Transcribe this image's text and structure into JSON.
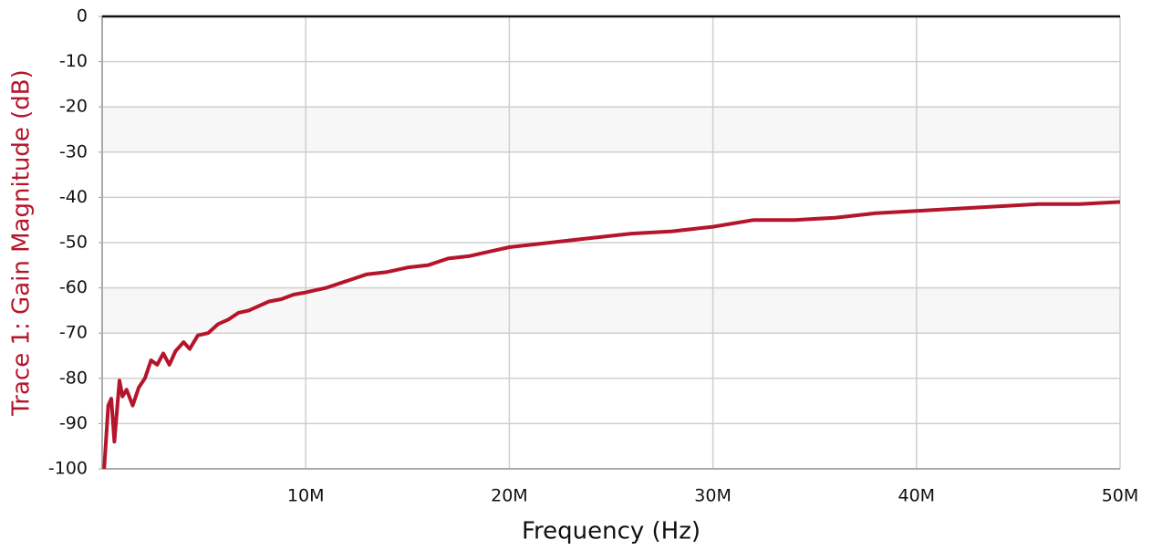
{
  "chart_data": {
    "type": "line",
    "xlabel": "Frequency (Hz)",
    "ylabel": "Trace 1: Gain Magnitude (dB)",
    "x": [
      100000,
      300000,
      450000,
      600000,
      750000,
      850000,
      1000000,
      1200000,
      1500000,
      1800000,
      2100000,
      2400000,
      2700000,
      3000000,
      3300000,
      3600000,
      4000000,
      4300000,
      4700000,
      5200000,
      5700000,
      6200000,
      6700000,
      7200000,
      7700000,
      8200000,
      8800000,
      9400000,
      10000000,
      11000000,
      12000000,
      13000000,
      14000000,
      15000000,
      16000000,
      17000000,
      18000000,
      19000000,
      20000000,
      22000000,
      24000000,
      26000000,
      28000000,
      30000000,
      32000000,
      34000000,
      36000000,
      38000000,
      40000000,
      42000000,
      44000000,
      46000000,
      48000000,
      50000000
    ],
    "series": [
      {
        "color": "#b5152b",
        "values": [
          -100,
          -86,
          -84.5,
          -94,
          -86,
          -80.5,
          -84,
          -82.5,
          -86,
          -82,
          -80,
          -76,
          -77,
          -74.5,
          -77,
          -74,
          -72,
          -73.5,
          -70.5,
          -70,
          -68,
          -67,
          -65.5,
          -65,
          -64,
          -63,
          -62.5,
          -61.5,
          -61,
          -60,
          -58.5,
          -57,
          -56.5,
          -55.5,
          -55,
          -53.5,
          -53,
          -52,
          -51,
          -50,
          -49,
          -48,
          -47.5,
          -46.5,
          -45,
          -45,
          -44.5,
          -43.5,
          -43,
          -42.5,
          -42,
          -41.5,
          -41.5,
          -41
        ]
      }
    ],
    "xlim": [
      0,
      50000000
    ],
    "xticks": [
      {
        "value": 10000000,
        "label": "10M"
      },
      {
        "value": 20000000,
        "label": "20M"
      },
      {
        "value": 30000000,
        "label": "30M"
      },
      {
        "value": 40000000,
        "label": "40M"
      },
      {
        "value": 50000000,
        "label": "50M"
      }
    ],
    "ylim": [
      -100,
      0
    ],
    "yticks": [
      0,
      -10,
      -20,
      -30,
      -40,
      -50,
      -60,
      -70,
      -80,
      -90,
      -100
    ],
    "grid": true
  }
}
